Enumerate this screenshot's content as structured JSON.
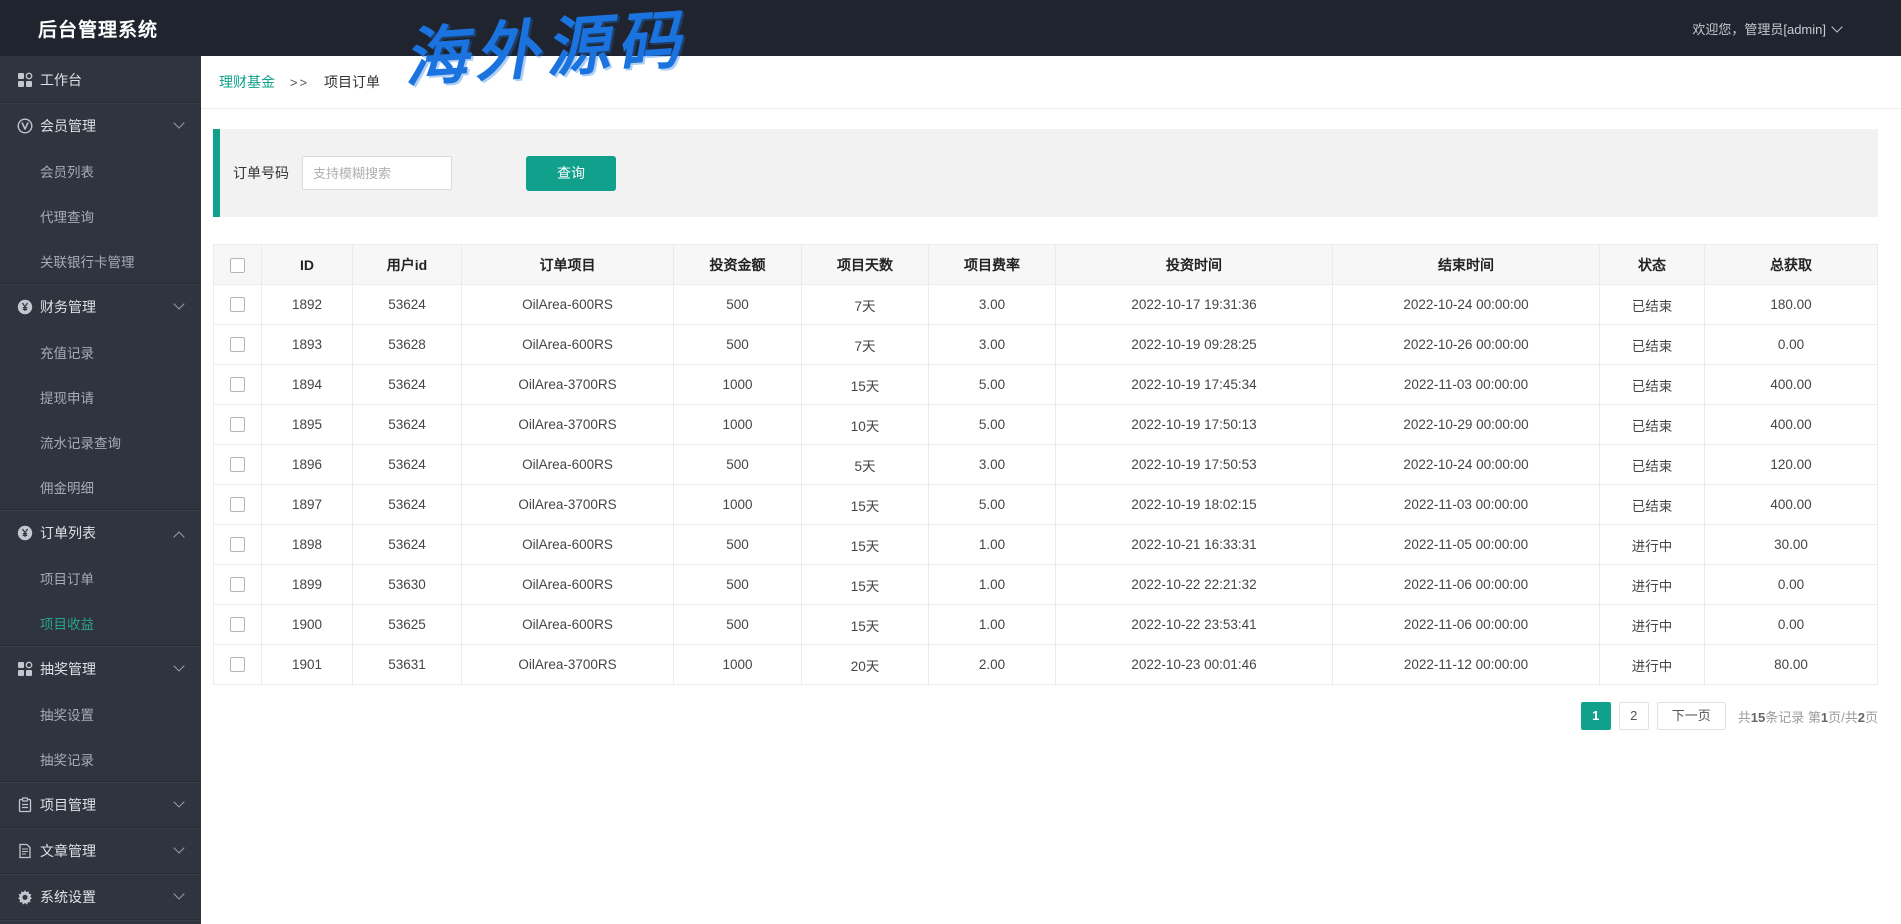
{
  "app": {
    "title": "后台管理系统",
    "welcome": "欢迎您，管理员[admin]"
  },
  "watermark": {
    "text": "海外源码",
    "color": "#1a73de"
  },
  "theme": {
    "accent": "#10a08c",
    "header_bg": "#20242e",
    "sidebar_bg": "#2f343e",
    "panel_bg": "#f2f2f2"
  },
  "breadcrumb": {
    "parent": "理财基金",
    "separator": ">>",
    "current": "项目订单"
  },
  "search": {
    "label": "订单号码",
    "placeholder": "支持模糊搜索",
    "query_button": "查询"
  },
  "sidebar": {
    "groups": [
      {
        "items": [
          {
            "name": "workbench",
            "label": "工作台",
            "icon": "grid-icon"
          }
        ]
      },
      {
        "items": [
          {
            "name": "member-management",
            "label": "会员管理",
            "icon": "v-circle-icon",
            "chevron": "down"
          },
          {
            "name": "member-list",
            "label": "会员列表",
            "sub": true
          },
          {
            "name": "agent-query",
            "label": "代理查询",
            "sub": true
          },
          {
            "name": "linked-bank-card-management",
            "label": "关联银行卡管理",
            "sub": true
          }
        ]
      },
      {
        "items": [
          {
            "name": "finance-management",
            "label": "财务管理",
            "icon": "yen-circle-icon",
            "chevron": "down"
          },
          {
            "name": "recharge-records",
            "label": "充值记录",
            "sub": true
          },
          {
            "name": "withdrawal-requests",
            "label": "提现申请",
            "sub": true
          },
          {
            "name": "flow-record-query",
            "label": "流水记录查询",
            "sub": true
          },
          {
            "name": "commission-details",
            "label": "佣金明细",
            "sub": true
          }
        ]
      },
      {
        "items": [
          {
            "name": "order-list",
            "label": "订单列表",
            "icon": "yen-circle-icon",
            "chevron": "up"
          },
          {
            "name": "project-orders",
            "label": "项目订单",
            "sub": true
          },
          {
            "name": "project-earnings",
            "label": "项目收益",
            "sub": true,
            "active": true
          }
        ]
      },
      {
        "items": [
          {
            "name": "lottery-management",
            "label": "抽奖管理",
            "icon": "grid-icon",
            "chevron": "down"
          },
          {
            "name": "lottery-settings",
            "label": "抽奖设置",
            "sub": true
          },
          {
            "name": "lottery-records",
            "label": "抽奖记录",
            "sub": true
          }
        ]
      },
      {
        "items": [
          {
            "name": "project-management",
            "label": "项目管理",
            "icon": "clipboard-icon",
            "chevron": "down"
          }
        ]
      },
      {
        "items": [
          {
            "name": "article-management",
            "label": "文章管理",
            "icon": "document-icon",
            "chevron": "down"
          }
        ]
      },
      {
        "items": [
          {
            "name": "system-settings",
            "label": "系统设置",
            "icon": "gear-icon",
            "chevron": "down"
          }
        ]
      }
    ]
  },
  "table": {
    "columns": [
      "ID",
      "用户id",
      "订单项目",
      "投资金额",
      "项目天数",
      "项目费率",
      "投资时间",
      "结束时间",
      "状态",
      "总获取"
    ],
    "rows": [
      [
        "1892",
        "53624",
        "OilArea-600RS",
        "500",
        "7天",
        "3.00",
        "2022-10-17 19:31:36",
        "2022-10-24 00:00:00",
        "已结束",
        "180.00"
      ],
      [
        "1893",
        "53628",
        "OilArea-600RS",
        "500",
        "7天",
        "3.00",
        "2022-10-19 09:28:25",
        "2022-10-26 00:00:00",
        "已结束",
        "0.00"
      ],
      [
        "1894",
        "53624",
        "OilArea-3700RS",
        "1000",
        "15天",
        "5.00",
        "2022-10-19 17:45:34",
        "2022-11-03 00:00:00",
        "已结束",
        "400.00"
      ],
      [
        "1895",
        "53624",
        "OilArea-3700RS",
        "1000",
        "10天",
        "5.00",
        "2022-10-19 17:50:13",
        "2022-10-29 00:00:00",
        "已结束",
        "400.00"
      ],
      [
        "1896",
        "53624",
        "OilArea-600RS",
        "500",
        "5天",
        "3.00",
        "2022-10-19 17:50:53",
        "2022-10-24 00:00:00",
        "已结束",
        "120.00"
      ],
      [
        "1897",
        "53624",
        "OilArea-3700RS",
        "1000",
        "15天",
        "5.00",
        "2022-10-19 18:02:15",
        "2022-11-03 00:00:00",
        "已结束",
        "400.00"
      ],
      [
        "1898",
        "53624",
        "OilArea-600RS",
        "500",
        "15天",
        "1.00",
        "2022-10-21 16:33:31",
        "2022-11-05 00:00:00",
        "进行中",
        "30.00"
      ],
      [
        "1899",
        "53630",
        "OilArea-600RS",
        "500",
        "15天",
        "1.00",
        "2022-10-22 22:21:32",
        "2022-11-06 00:00:00",
        "进行中",
        "0.00"
      ],
      [
        "1900",
        "53625",
        "OilArea-600RS",
        "500",
        "15天",
        "1.00",
        "2022-10-22 23:53:41",
        "2022-11-06 00:00:00",
        "进行中",
        "0.00"
      ],
      [
        "1901",
        "53631",
        "OilArea-3700RS",
        "1000",
        "20天",
        "2.00",
        "2022-10-23 00:01:46",
        "2022-11-12 00:00:00",
        "进行中",
        "80.00"
      ]
    ]
  },
  "pagination": {
    "pages": [
      {
        "label": "1",
        "active": true
      },
      {
        "label": "2",
        "active": false
      }
    ],
    "next_label": "下一页",
    "summary_parts": [
      [
        "共",
        false
      ],
      [
        "15",
        true
      ],
      [
        "条记录 第",
        false
      ],
      [
        "1",
        true
      ],
      [
        "页/共",
        false
      ],
      [
        "2",
        true
      ],
      [
        "页",
        false
      ]
    ]
  }
}
